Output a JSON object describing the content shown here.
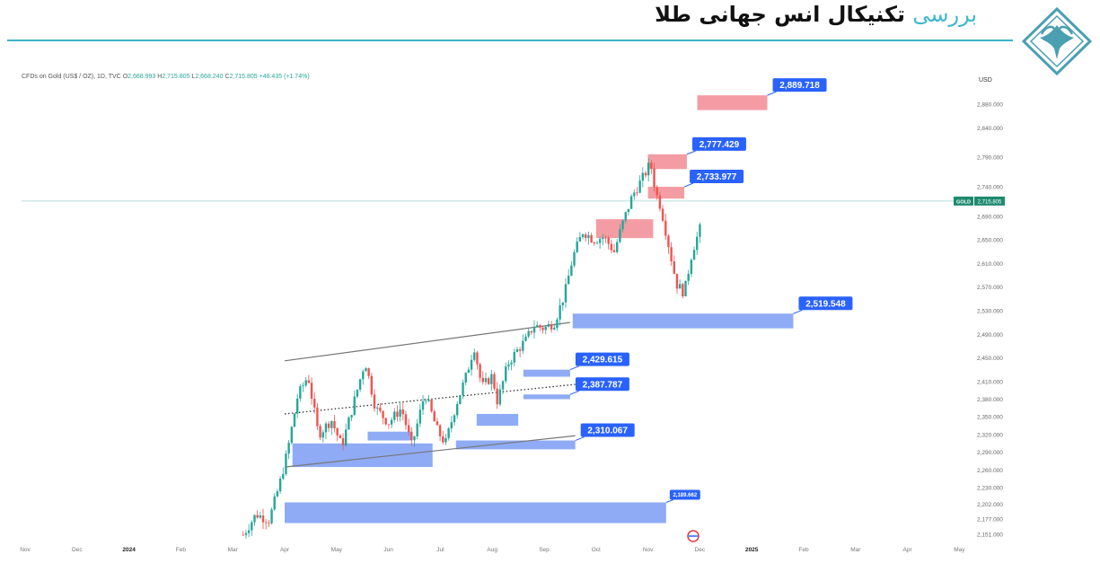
{
  "header": {
    "title_accent": "بررسی",
    "title_main": "تکنیکال انس جهانی طلا"
  },
  "brand": {
    "accent": "#3fb8c8",
    "logo_color": "#4a9fb0"
  },
  "chart_header": {
    "symbol": "CFDs on Gold (US$ / OZ), 1D, TVC",
    "o_label": "O",
    "o_value": "2,668.993",
    "h_label": "H",
    "h_value": "2,715.805",
    "l_label": "L",
    "l_value": "2,668.240",
    "c_label": "C",
    "c_value": "2,715.805",
    "change": "+46.435 (+1.74%)"
  },
  "chart_data": {
    "type": "candlestick",
    "currency_label": "USD",
    "price_scale": [
      {
        "v": 2151,
        "label": "2,151.000"
      },
      {
        "v": 2177,
        "label": "2,177.000"
      },
      {
        "v": 2202,
        "label": "2,202.000"
      },
      {
        "v": 2230,
        "label": "2,230.000"
      },
      {
        "v": 2260,
        "label": "2,260.000"
      },
      {
        "v": 2290,
        "label": "2,290.000"
      },
      {
        "v": 2320,
        "label": "2,320.000"
      },
      {
        "v": 2350,
        "label": "2,350.000"
      },
      {
        "v": 2380,
        "label": "2,380.000"
      },
      {
        "v": 2410,
        "label": "2,410.000"
      },
      {
        "v": 2450,
        "label": "2,450.000"
      },
      {
        "v": 2490,
        "label": "2,490.000"
      },
      {
        "v": 2530,
        "label": "2,530.000"
      },
      {
        "v": 2570,
        "label": "2,570.000"
      },
      {
        "v": 2610,
        "label": "2,610.000"
      },
      {
        "v": 2650,
        "label": "2,650.000"
      },
      {
        "v": 2690,
        "label": "2,690.000"
      },
      {
        "v": 2740,
        "label": "2,740.000"
      },
      {
        "v": 2790,
        "label": "2,790.000"
      },
      {
        "v": 2840,
        "label": "2,840.000"
      },
      {
        "v": 2880,
        "label": "2,880.000"
      }
    ],
    "time_axis": [
      {
        "t": 0,
        "label": "Nov"
      },
      {
        "t": 1,
        "label": "Dec"
      },
      {
        "t": 2,
        "label": "2024",
        "bold": true
      },
      {
        "t": 3,
        "label": "Feb"
      },
      {
        "t": 4,
        "label": "Mar"
      },
      {
        "t": 5,
        "label": "Apr"
      },
      {
        "t": 6,
        "label": "May"
      },
      {
        "t": 7,
        "label": "Jun"
      },
      {
        "t": 8,
        "label": "Jul"
      },
      {
        "t": 9,
        "label": "Aug"
      },
      {
        "t": 10,
        "label": "Sep"
      },
      {
        "t": 11,
        "label": "Oct"
      },
      {
        "t": 12,
        "label": "Nov"
      },
      {
        "t": 13,
        "label": "Dec"
      },
      {
        "t": 14,
        "label": "2025",
        "bold": true
      },
      {
        "t": 15,
        "label": "Feb"
      },
      {
        "t": 16,
        "label": "Mar"
      },
      {
        "t": 17,
        "label": "Apr"
      },
      {
        "t": 18,
        "label": "May"
      }
    ],
    "last_price": {
      "symbol": "GOLD",
      "value": 2715.805,
      "label": "2,715.805"
    },
    "price_path": [
      {
        "t": 4.2,
        "p": 2150
      },
      {
        "t": 4.45,
        "p": 2185
      },
      {
        "t": 4.7,
        "p": 2175
      },
      {
        "t": 4.9,
        "p": 2235
      },
      {
        "t": 5.05,
        "p": 2290
      },
      {
        "t": 5.25,
        "p": 2385
      },
      {
        "t": 5.45,
        "p": 2420
      },
      {
        "t": 5.65,
        "p": 2320
      },
      {
        "t": 5.9,
        "p": 2345
      },
      {
        "t": 6.1,
        "p": 2300
      },
      {
        "t": 6.35,
        "p": 2380
      },
      {
        "t": 6.55,
        "p": 2445
      },
      {
        "t": 6.75,
        "p": 2365
      },
      {
        "t": 7.0,
        "p": 2340
      },
      {
        "t": 7.25,
        "p": 2365
      },
      {
        "t": 7.45,
        "p": 2300
      },
      {
        "t": 7.7,
        "p": 2390
      },
      {
        "t": 7.95,
        "p": 2325
      },
      {
        "t": 8.1,
        "p": 2305
      },
      {
        "t": 8.3,
        "p": 2370
      },
      {
        "t": 8.5,
        "p": 2420
      },
      {
        "t": 8.65,
        "p": 2470
      },
      {
        "t": 8.8,
        "p": 2400
      },
      {
        "t": 9.0,
        "p": 2420
      },
      {
        "t": 9.1,
        "p": 2375
      },
      {
        "t": 9.3,
        "p": 2440
      },
      {
        "t": 9.5,
        "p": 2465
      },
      {
        "t": 9.65,
        "p": 2480
      },
      {
        "t": 9.8,
        "p": 2505
      },
      {
        "t": 10.0,
        "p": 2500
      },
      {
        "t": 10.2,
        "p": 2510
      },
      {
        "t": 10.4,
        "p": 2560
      },
      {
        "t": 10.55,
        "p": 2620
      },
      {
        "t": 10.75,
        "p": 2665
      },
      {
        "t": 10.95,
        "p": 2650
      },
      {
        "t": 11.15,
        "p": 2655
      },
      {
        "t": 11.35,
        "p": 2630
      },
      {
        "t": 11.5,
        "p": 2675
      },
      {
        "t": 11.7,
        "p": 2725
      },
      {
        "t": 11.9,
        "p": 2755
      },
      {
        "t": 12.05,
        "p": 2780
      },
      {
        "t": 12.15,
        "p": 2730
      },
      {
        "t": 12.25,
        "p": 2705
      },
      {
        "t": 12.4,
        "p": 2640
      },
      {
        "t": 12.55,
        "p": 2575
      },
      {
        "t": 12.7,
        "p": 2560
      },
      {
        "t": 12.85,
        "p": 2630
      },
      {
        "t": 13.0,
        "p": 2668
      },
      {
        "t": 13.05,
        "p": 2715
      }
    ],
    "supply_zones": [
      {
        "t0": 11.0,
        "t1": 12.1,
        "p_low": 2653,
        "p_high": 2685,
        "label": ""
      },
      {
        "t0": 12.0,
        "t1": 12.7,
        "p_low": 2720,
        "p_high": 2740,
        "label": "2,733.977"
      },
      {
        "t0": 12.0,
        "t1": 12.75,
        "p_low": 2770,
        "p_high": 2795,
        "label": "2,777.429"
      },
      {
        "t0": 12.95,
        "t1": 14.3,
        "p_low": 2870,
        "p_high": 2895,
        "label": "2,889.718"
      }
    ],
    "demand_zones": [
      {
        "t0": 10.55,
        "t1": 14.8,
        "p_low": 2500,
        "p_high": 2525,
        "label": "2,519.548"
      },
      {
        "t0": 9.6,
        "t1": 10.5,
        "p_low": 2418,
        "p_high": 2430,
        "label": "2,429.615"
      },
      {
        "t0": 9.6,
        "t1": 10.5,
        "p_low": 2380,
        "p_high": 2388,
        "label": "2,387.787"
      },
      {
        "t0": 8.3,
        "t1": 10.6,
        "p_low": 2295,
        "p_high": 2310,
        "label": "2,310.067"
      },
      {
        "t0": 8.7,
        "t1": 9.5,
        "p_low": 2335,
        "p_high": 2355,
        "label": ""
      },
      {
        "t0": 6.6,
        "t1": 7.45,
        "p_low": 2310,
        "p_high": 2325,
        "label": ""
      },
      {
        "t0": 5.15,
        "t1": 7.85,
        "p_low": 2265,
        "p_high": 2305,
        "label": ""
      },
      {
        "t0": 5.0,
        "t1": 12.35,
        "p_low": 2170,
        "p_high": 2205,
        "label": "2,189.662"
      }
    ],
    "trend_lines": [
      {
        "style": "solid",
        "t0": 5.0,
        "p0": 2445,
        "t1": 10.5,
        "p1": 2510
      },
      {
        "style": "solid",
        "t0": 5.0,
        "p0": 2265,
        "t1": 10.6,
        "p1": 2318
      },
      {
        "style": "dotted",
        "t0": 5.0,
        "p0": 2355,
        "t1": 10.6,
        "p1": 2405
      }
    ]
  }
}
